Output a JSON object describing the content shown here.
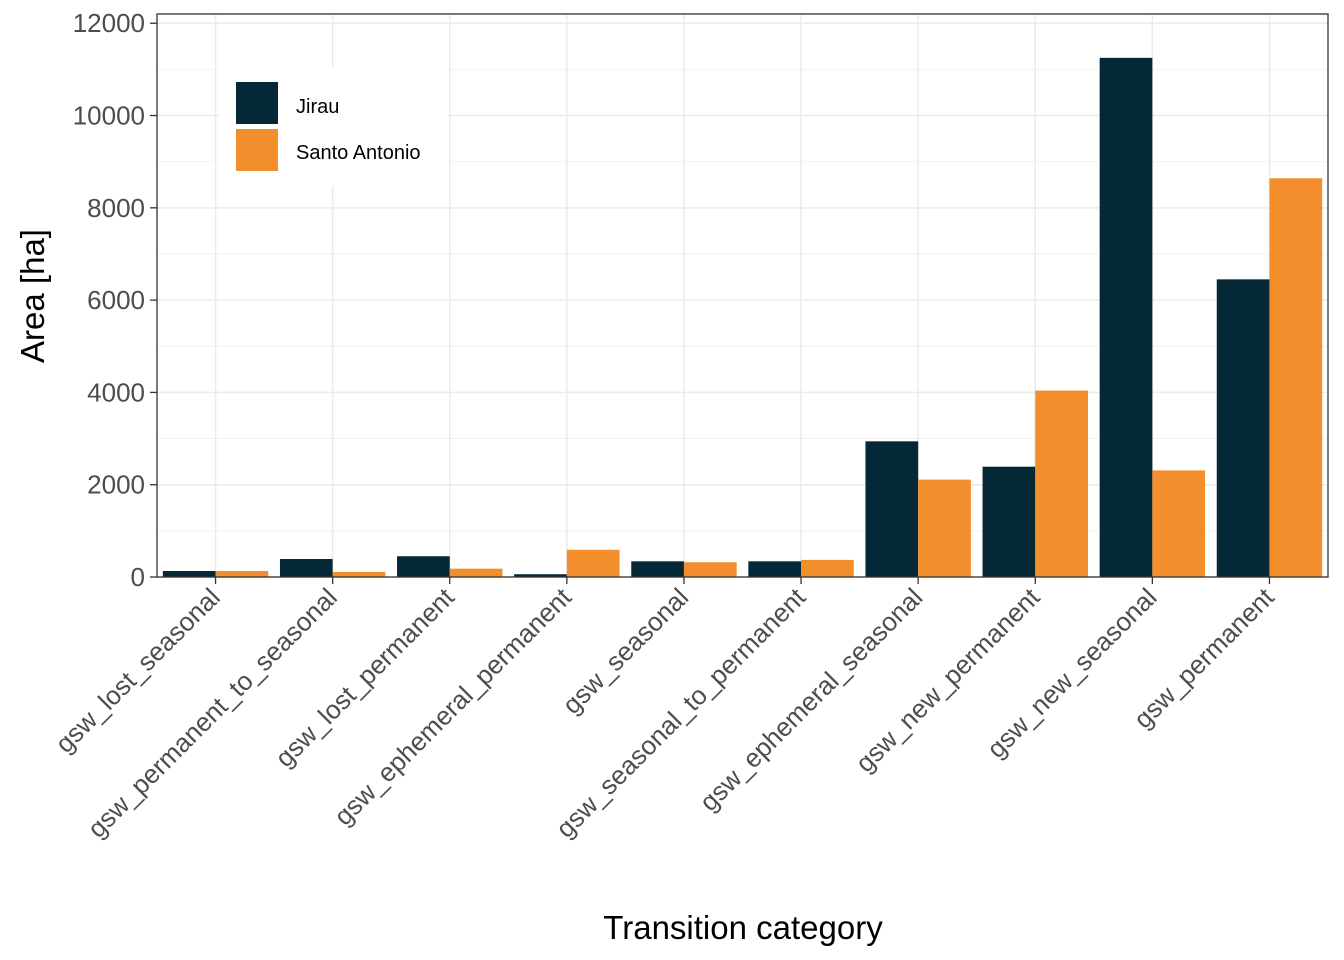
{
  "chart_data": {
    "type": "bar",
    "title": "",
    "xlabel": "Transition category",
    "ylabel": "Area [ha]",
    "ylim": [
      0,
      12200
    ],
    "yticks": [
      0,
      2000,
      4000,
      6000,
      8000,
      10000,
      12000
    ],
    "categories": [
      "gsw_lost_seasonal",
      "gsw_permanent_to_seasonal",
      "gsw_lost_permanent",
      "gsw_ephemeral_permanent",
      "gsw_seasonal",
      "gsw_seasonal_to_permanent",
      "gsw_ephemeral_seasonal",
      "gsw_new_permanent",
      "gsw_new_seasonal",
      "gsw_permanent"
    ],
    "series": [
      {
        "name": "Jirau",
        "color": "#042835",
        "values": [
          130,
          390,
          450,
          60,
          340,
          340,
          2940,
          2390,
          11250,
          6450
        ]
      },
      {
        "name": "Santo Antonio",
        "color": "#f28e2b",
        "values": [
          130,
          110,
          180,
          590,
          320,
          370,
          2110,
          4040,
          2310,
          8640
        ]
      }
    ],
    "grid": true,
    "legend_position": "top-left"
  }
}
